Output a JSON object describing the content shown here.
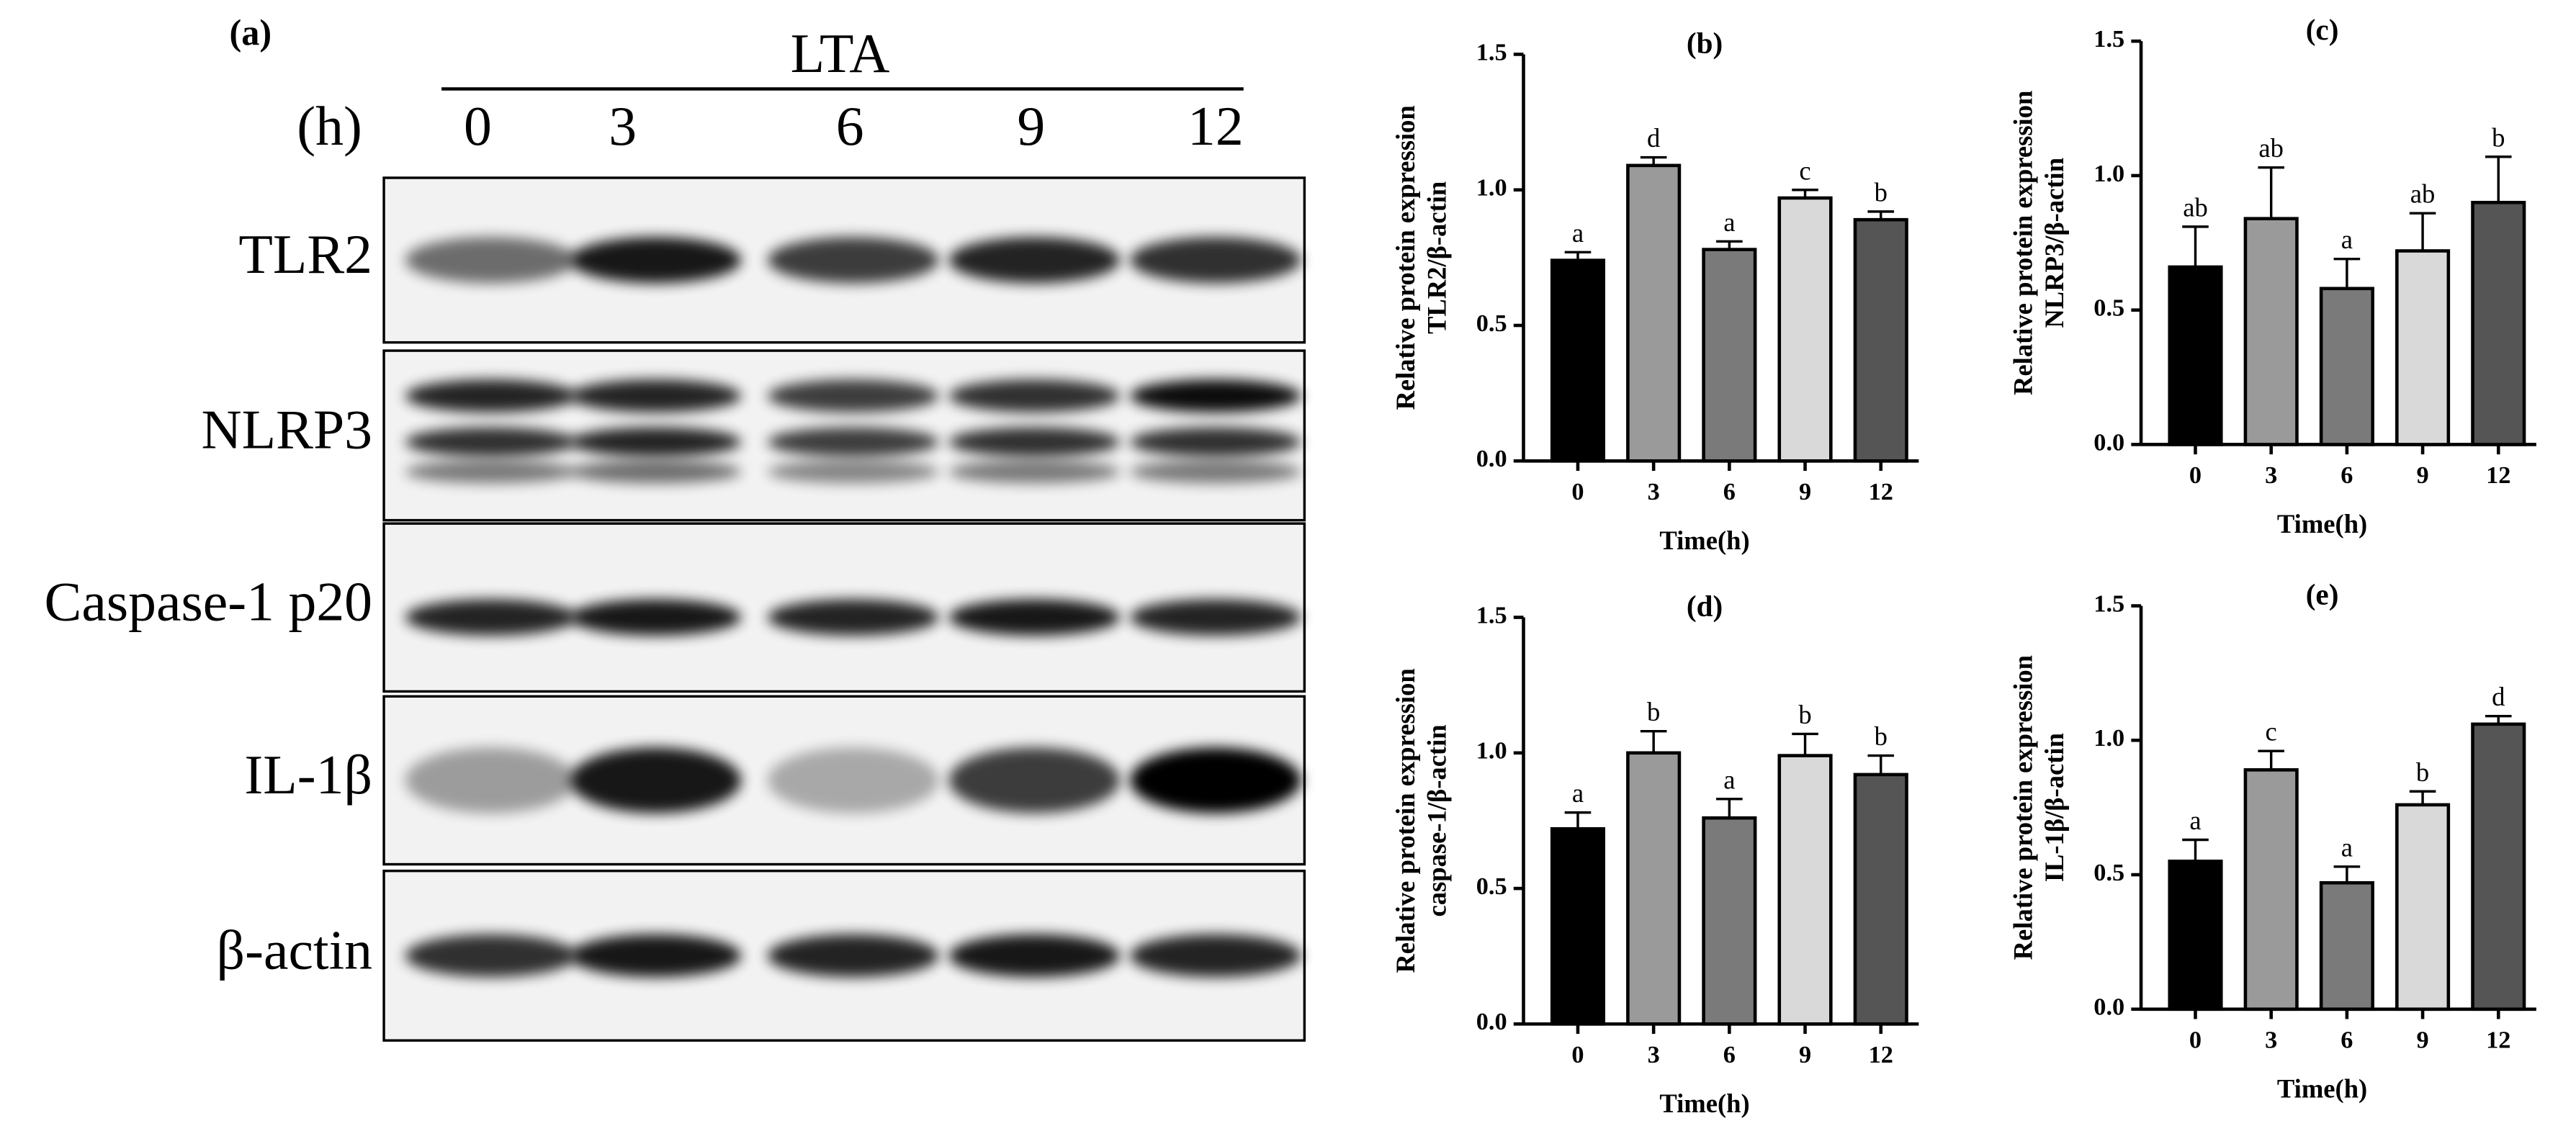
{
  "blot": {
    "label": "(a)",
    "treatment": "LTA",
    "time_label": "(h)",
    "times": [
      "0",
      "3",
      "6",
      "9",
      "12"
    ],
    "proteins": [
      "TLR2",
      "NLRP3",
      "Caspase-1 p20",
      "IL-1β",
      "β-actin"
    ]
  },
  "chart_data": [
    {
      "type": "bar",
      "title": "(b)",
      "ylabel": [
        "Relative protein expression",
        "TLR2/β-actin"
      ],
      "xlabel": "Time(h)",
      "categories": [
        "0",
        "3",
        "6",
        "9",
        "12"
      ],
      "values": [
        0.74,
        1.09,
        0.78,
        0.97,
        0.89
      ],
      "errors": [
        0.03,
        0.03,
        0.03,
        0.03,
        0.03
      ],
      "annotations": [
        "a",
        "d",
        "a",
        "c",
        "b"
      ],
      "colors": [
        "#000000",
        "#9a9a9a",
        "#7a7a7a",
        "#d9d9d9",
        "#555555"
      ],
      "ylim": [
        0,
        1.5
      ],
      "yticks": [
        {
          "value": 0,
          "label": "0.0"
        },
        0.5,
        {
          "value": 1,
          "label": "1.0"
        },
        1.5
      ]
    },
    {
      "type": "bar",
      "title": "(c)",
      "ylabel": [
        "Relative protein expression",
        "NLRP3/β-actin"
      ],
      "xlabel": "Time(h)",
      "categories": [
        "0",
        "3",
        "6",
        "9",
        "12"
      ],
      "values": [
        0.66,
        0.84,
        0.58,
        0.72,
        0.9
      ],
      "errors": [
        0.15,
        0.19,
        0.11,
        0.14,
        0.17
      ],
      "annotations": [
        "ab",
        "ab",
        "a",
        "ab",
        "b"
      ],
      "colors": [
        "#000000",
        "#9a9a9a",
        "#7a7a7a",
        "#d9d9d9",
        "#555555"
      ],
      "ylim": [
        0,
        1.5
      ],
      "yticks": [
        {
          "value": 0,
          "label": "0.0"
        },
        0.5,
        {
          "value": 1,
          "label": "1.0"
        },
        1.5
      ]
    },
    {
      "type": "bar",
      "title": "(d)",
      "ylabel": [
        "Relative protein expression",
        "caspase-1/β-actin"
      ],
      "xlabel": "Time(h)",
      "categories": [
        "0",
        "3",
        "6",
        "9",
        "12"
      ],
      "values": [
        0.72,
        1.0,
        0.76,
        0.99,
        0.92
      ],
      "errors": [
        0.06,
        0.08,
        0.07,
        0.08,
        0.07
      ],
      "annotations": [
        "a",
        "b",
        "a",
        "b",
        "b"
      ],
      "colors": [
        "#000000",
        "#9a9a9a",
        "#7a7a7a",
        "#d9d9d9",
        "#555555"
      ],
      "ylim": [
        0,
        1.5
      ],
      "yticks": [
        {
          "value": 0,
          "label": "0.0"
        },
        0.5,
        {
          "value": 1,
          "label": "1.0"
        },
        1.5
      ]
    },
    {
      "type": "bar",
      "title": "(e)",
      "ylabel": [
        "Relative protein expression",
        "IL-1β/β-actin"
      ],
      "xlabel": "Time(h)",
      "categories": [
        "0",
        "3",
        "6",
        "9",
        "12"
      ],
      "values": [
        0.55,
        0.89,
        0.47,
        0.76,
        1.06
      ],
      "errors": [
        0.08,
        0.07,
        0.06,
        0.05,
        0.03
      ],
      "annotations": [
        "a",
        "c",
        "a",
        "b",
        "d"
      ],
      "colors": [
        "#000000",
        "#9a9a9a",
        "#7a7a7a",
        "#d9d9d9",
        "#555555"
      ],
      "ylim": [
        0,
        1.5
      ],
      "yticks": [
        {
          "value": 0,
          "label": "0.0"
        },
        0.5,
        {
          "value": 1,
          "label": "1.0"
        },
        1.5
      ]
    }
  ]
}
